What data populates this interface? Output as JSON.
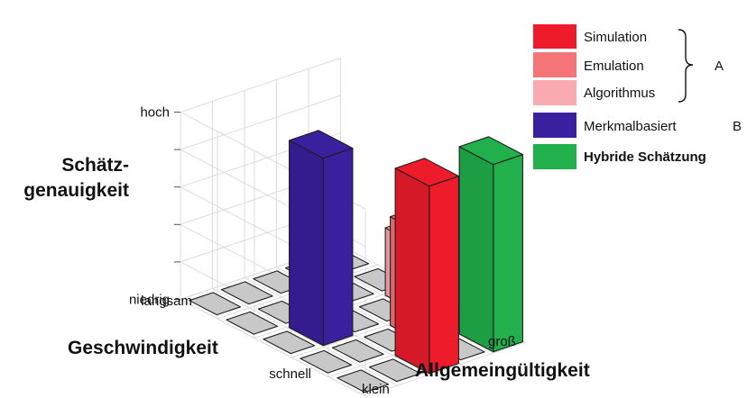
{
  "chart_data": {
    "type": "bar",
    "subtype": "3d-bar",
    "z_axis": {
      "title_line1": "Schätz-",
      "title_line2": "genauigkeit",
      "tick_top": "hoch",
      "tick_bottom": "niedrig"
    },
    "depth_axis": {
      "title": "Geschwindigkeit",
      "tick_labels": [
        "langsam",
        "schnell"
      ]
    },
    "x_axis": {
      "title": "Allgemeingültigkeit",
      "tick_labels": [
        "klein",
        "groß"
      ]
    },
    "z_range": [
      0,
      5
    ],
    "grid": true,
    "legend": {
      "placement": "top-right",
      "items": [
        {
          "name": "Simulation",
          "color": "#ee1c2b",
          "group": "A"
        },
        {
          "name": "Emulation",
          "color": "#f47478",
          "group": "A"
        },
        {
          "name": "Algorithmus",
          "color": "#f8aab0",
          "group": "A"
        },
        {
          "name": "Merkmalbasiert",
          "color": "#3a1f9e",
          "group": "B"
        },
        {
          "name": "Hybride Schätzung",
          "color": "#21b04b",
          "bold": true
        }
      ],
      "group_labels": {
        "A": "A",
        "B": "B"
      }
    },
    "bars": [
      {
        "series": "Simulation",
        "generality": 2,
        "speed": 0,
        "value": 5.0,
        "color": "#ee1c2b"
      },
      {
        "series": "Emulation",
        "generality": 3,
        "speed": 1,
        "value": 2.9,
        "color": "#f47478"
      },
      {
        "series": "Algorithmus",
        "generality": 4,
        "speed": 2,
        "value": 1.8,
        "color": "#f8aab0"
      },
      {
        "series": "Hybride Schätzung",
        "generality": 4,
        "speed": 0,
        "value": 5.0,
        "color": "#21b04b"
      },
      {
        "series": "Merkmalbasiert",
        "generality": 1,
        "speed": 2,
        "value": 5.0,
        "color": "#3a1f9e"
      }
    ],
    "floor_tile_color": "#c8c8c8"
  }
}
